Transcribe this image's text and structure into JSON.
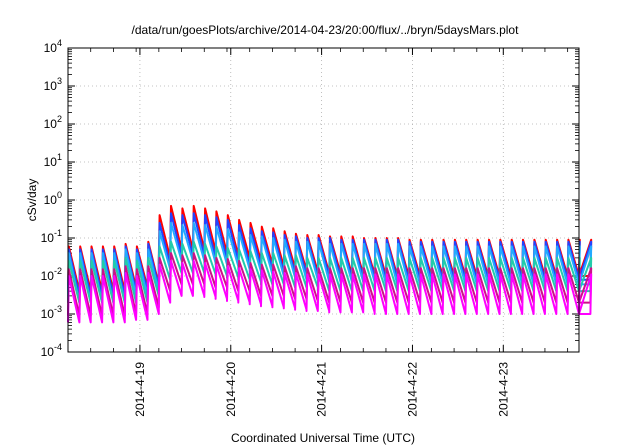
{
  "chart_data": {
    "type": "line",
    "title": "/data/run/goesPlots/archive/2014-04-23/20:00/flux/../bryn/5daysMars.plot",
    "xlabel": "Coordinated Universal Time (UTC)",
    "ylabel": "cSv/day",
    "y_scale": "log",
    "ylim": [
      0.0001,
      10000
    ],
    "xlim": [
      "2014-04-18 05:00",
      "2014-04-23 20:00"
    ],
    "x_ticks": [
      "2014-4-19",
      "2014-4-20",
      "2014-4-21",
      "2014-4-22",
      "2014-4-23"
    ],
    "y_ticks": [
      {
        "base": "10",
        "exp": "4"
      },
      {
        "base": "10",
        "exp": "3"
      },
      {
        "base": "10",
        "exp": "2"
      },
      {
        "base": "10",
        "exp": "1"
      },
      {
        "base": "10",
        "exp": "0"
      },
      {
        "base": "10",
        "exp": "-1"
      },
      {
        "base": "10",
        "exp": "-2"
      },
      {
        "base": "10",
        "exp": "-3"
      },
      {
        "base": "10",
        "exp": "-4"
      }
    ],
    "grid": true,
    "sawtooth_period_hours": 3,
    "series": [
      {
        "color": "#ff0000",
        "peaks": [
          0.06,
          0.06,
          0.06,
          0.06,
          0.06,
          0.07,
          0.06,
          0.08,
          0.4,
          0.7,
          0.6,
          0.7,
          0.6,
          0.5,
          0.4,
          0.3,
          0.25,
          0.2,
          0.18,
          0.15,
          0.13,
          0.12,
          0.12,
          0.11,
          0.11,
          0.11,
          0.1,
          0.1,
          0.1,
          0.1,
          0.09,
          0.09,
          0.09,
          0.09,
          0.09,
          0.09,
          0.09,
          0.09,
          0.09,
          0.09,
          0.09,
          0.09,
          0.09,
          0.09,
          0.09,
          0.09,
          0.09
        ],
        "troughs": [
          0.004,
          0.004,
          0.004,
          0.004,
          0.004,
          0.005,
          0.005,
          0.006,
          0.03,
          0.05,
          0.05,
          0.05,
          0.045,
          0.04,
          0.035,
          0.03,
          0.025,
          0.02,
          0.018,
          0.016,
          0.014,
          0.013,
          0.012,
          0.012,
          0.011,
          0.011,
          0.011,
          0.01,
          0.01,
          0.01,
          0.01,
          0.01,
          0.01,
          0.01,
          0.01,
          0.01,
          0.01,
          0.01,
          0.01,
          0.01,
          0.01,
          0.01,
          0.01,
          0.01,
          0.01,
          0.01,
          0.01
        ]
      },
      {
        "color": "#2244ff",
        "peaks": [
          0.05,
          0.05,
          0.05,
          0.05,
          0.05,
          0.06,
          0.05,
          0.07,
          0.25,
          0.45,
          0.4,
          0.45,
          0.4,
          0.35,
          0.3,
          0.22,
          0.18,
          0.15,
          0.14,
          0.12,
          0.11,
          0.1,
          0.1,
          0.1,
          0.09,
          0.09,
          0.09,
          0.09,
          0.09,
          0.09,
          0.08,
          0.08,
          0.08,
          0.08,
          0.08,
          0.08,
          0.08,
          0.08,
          0.08,
          0.08,
          0.08,
          0.08,
          0.08,
          0.08,
          0.08,
          0.08,
          0.08
        ],
        "troughs": [
          0.003,
          0.003,
          0.003,
          0.003,
          0.003,
          0.004,
          0.004,
          0.005,
          0.02,
          0.035,
          0.035,
          0.035,
          0.03,
          0.028,
          0.025,
          0.02,
          0.018,
          0.015,
          0.013,
          0.012,
          0.011,
          0.01,
          0.01,
          0.009,
          0.009,
          0.009,
          0.009,
          0.008,
          0.008,
          0.008,
          0.008,
          0.008,
          0.008,
          0.008,
          0.008,
          0.008,
          0.008,
          0.008,
          0.008,
          0.008,
          0.008,
          0.008,
          0.008,
          0.008,
          0.008,
          0.008,
          0.008
        ]
      },
      {
        "color": "#22aaff",
        "peaks": [
          0.04,
          0.04,
          0.04,
          0.04,
          0.04,
          0.05,
          0.04,
          0.05,
          0.15,
          0.25,
          0.22,
          0.25,
          0.22,
          0.2,
          0.17,
          0.14,
          0.12,
          0.11,
          0.1,
          0.09,
          0.08,
          0.08,
          0.08,
          0.07,
          0.07,
          0.07,
          0.07,
          0.07,
          0.07,
          0.07,
          0.06,
          0.06,
          0.06,
          0.06,
          0.06,
          0.06,
          0.06,
          0.06,
          0.06,
          0.06,
          0.06,
          0.06,
          0.06,
          0.06,
          0.06,
          0.06,
          0.06
        ],
        "troughs": [
          0.002,
          0.002,
          0.002,
          0.002,
          0.002,
          0.003,
          0.003,
          0.004,
          0.015,
          0.025,
          0.025,
          0.025,
          0.022,
          0.02,
          0.018,
          0.015,
          0.013,
          0.011,
          0.01,
          0.009,
          0.008,
          0.008,
          0.007,
          0.007,
          0.007,
          0.007,
          0.007,
          0.006,
          0.006,
          0.006,
          0.006,
          0.006,
          0.006,
          0.006,
          0.006,
          0.006,
          0.006,
          0.006,
          0.006,
          0.006,
          0.006,
          0.006,
          0.006,
          0.006,
          0.006,
          0.006,
          0.006
        ]
      },
      {
        "color": "#22ccaa",
        "peaks": [
          0.025,
          0.025,
          0.025,
          0.025,
          0.025,
          0.03,
          0.025,
          0.03,
          0.06,
          0.08,
          0.07,
          0.08,
          0.07,
          0.06,
          0.055,
          0.05,
          0.045,
          0.04,
          0.04,
          0.035,
          0.035,
          0.03,
          0.03,
          0.03,
          0.03,
          0.03,
          0.03,
          0.03,
          0.03,
          0.03,
          0.03,
          0.03,
          0.03,
          0.03,
          0.03,
          0.03,
          0.03,
          0.03,
          0.03,
          0.03,
          0.03,
          0.03,
          0.03,
          0.03,
          0.03,
          0.03,
          0.03
        ],
        "troughs": [
          0.002,
          0.002,
          0.002,
          0.002,
          0.002,
          0.002,
          0.002,
          0.003,
          0.008,
          0.012,
          0.012,
          0.012,
          0.011,
          0.01,
          0.009,
          0.008,
          0.007,
          0.006,
          0.006,
          0.005,
          0.005,
          0.005,
          0.004,
          0.004,
          0.004,
          0.004,
          0.004,
          0.004,
          0.004,
          0.004,
          0.004,
          0.004,
          0.004,
          0.004,
          0.004,
          0.004,
          0.004,
          0.004,
          0.004,
          0.004,
          0.004,
          0.004,
          0.004,
          0.004,
          0.004,
          0.004,
          0.004
        ]
      },
      {
        "color": "#cc1188",
        "peaks": [
          0.015,
          0.015,
          0.015,
          0.015,
          0.015,
          0.018,
          0.015,
          0.018,
          0.03,
          0.04,
          0.035,
          0.04,
          0.035,
          0.03,
          0.028,
          0.025,
          0.022,
          0.02,
          0.02,
          0.018,
          0.018,
          0.016,
          0.016,
          0.016,
          0.016,
          0.016,
          0.016,
          0.016,
          0.016,
          0.016,
          0.016,
          0.016,
          0.016,
          0.016,
          0.016,
          0.016,
          0.016,
          0.016,
          0.016,
          0.016,
          0.016,
          0.016,
          0.016,
          0.016,
          0.016,
          0.016,
          0.016
        ],
        "troughs": [
          0.0009,
          0.0009,
          0.0009,
          0.0009,
          0.0009,
          0.001,
          0.001,
          0.0015,
          0.004,
          0.006,
          0.006,
          0.006,
          0.005,
          0.005,
          0.004,
          0.004,
          0.003,
          0.003,
          0.003,
          0.0025,
          0.0025,
          0.0022,
          0.002,
          0.002,
          0.002,
          0.002,
          0.002,
          0.002,
          0.002,
          0.002,
          0.002,
          0.002,
          0.002,
          0.002,
          0.002,
          0.002,
          0.002,
          0.002,
          0.002,
          0.002,
          0.002,
          0.002,
          0.002,
          0.002,
          0.002,
          0.002,
          0.002
        ]
      },
      {
        "color": "#ff00ff",
        "peaks": [
          0.01,
          0.01,
          0.01,
          0.01,
          0.01,
          0.012,
          0.01,
          0.012,
          0.02,
          0.025,
          0.022,
          0.025,
          0.022,
          0.02,
          0.018,
          0.016,
          0.015,
          0.014,
          0.013,
          0.012,
          0.012,
          0.011,
          0.011,
          0.011,
          0.011,
          0.011,
          0.011,
          0.011,
          0.011,
          0.011,
          0.011,
          0.011,
          0.011,
          0.011,
          0.011,
          0.011,
          0.011,
          0.011,
          0.011,
          0.011,
          0.011,
          0.011,
          0.011,
          0.011,
          0.011,
          0.011,
          0.011
        ],
        "troughs": [
          0.0006,
          0.0006,
          0.0006,
          0.0006,
          0.0006,
          0.0007,
          0.0007,
          0.001,
          0.002,
          0.003,
          0.003,
          0.003,
          0.0028,
          0.0025,
          0.0022,
          0.002,
          0.0018,
          0.0016,
          0.0015,
          0.0014,
          0.0013,
          0.0012,
          0.0012,
          0.0011,
          0.0011,
          0.0011,
          0.0011,
          0.001,
          0.001,
          0.001,
          0.001,
          0.001,
          0.001,
          0.001,
          0.001,
          0.001,
          0.001,
          0.001,
          0.001,
          0.001,
          0.001,
          0.001,
          0.001,
          0.001,
          0.001,
          0.001,
          0.001
        ]
      }
    ]
  }
}
